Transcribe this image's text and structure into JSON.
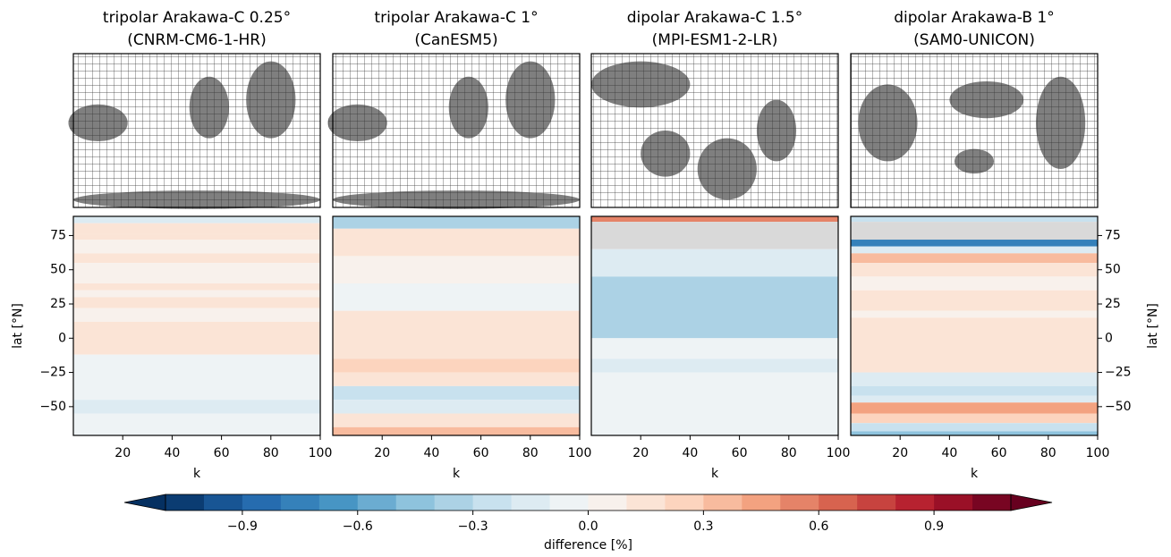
{
  "chart_data": [
    {
      "type": "contour",
      "title": "tripolar Arakawa-C 0.25°",
      "subtitle": "(CNRM-CM6-1-HR)",
      "xlabel": "k",
      "ylabel": "lat [°N]",
      "yaxis": "left",
      "xlim": [
        0,
        100
      ],
      "xticks": [
        20,
        40,
        60,
        80,
        100
      ],
      "ylim": [
        -71,
        89
      ],
      "yticks": [
        {
          "value": -50,
          "label": "−50"
        },
        {
          "value": -25,
          "label": "−25"
        },
        0,
        25,
        50,
        75
      ],
      "bands": [
        {
          "lat": [
            84,
            89
          ],
          "value": -0.2
        },
        {
          "lat": [
            76,
            84
          ],
          "value": 0.15
        },
        {
          "lat": [
            72,
            76
          ],
          "value": 0.1
        },
        {
          "lat": [
            62,
            72
          ],
          "value": 0.05
        },
        {
          "lat": [
            55,
            62
          ],
          "value": 0.15
        },
        {
          "lat": [
            40,
            55
          ],
          "value": 0.05
        },
        {
          "lat": [
            35,
            40
          ],
          "value": 0.15
        },
        {
          "lat": [
            30,
            35
          ],
          "value": 0.05
        },
        {
          "lat": [
            22,
            30
          ],
          "value": 0.15
        },
        {
          "lat": [
            12,
            22
          ],
          "value": 0.05
        },
        {
          "lat": [
            -12,
            12
          ],
          "value": 0.15
        },
        {
          "lat": [
            -45,
            -12
          ],
          "value": -0.05
        },
        {
          "lat": [
            -55,
            -45
          ],
          "value": -0.15
        },
        {
          "lat": [
            -71,
            -55
          ],
          "value": -0.05
        }
      ]
    },
    {
      "type": "contour",
      "title": "tripolar Arakawa-C 1°",
      "subtitle": "(CanESM5)",
      "xlabel": "k",
      "yaxis": "none",
      "xlim": [
        0,
        100
      ],
      "xticks": [
        20,
        40,
        60,
        80,
        100
      ],
      "ylim": [
        -71,
        89
      ],
      "bands": [
        {
          "lat": [
            80,
            89
          ],
          "value": -0.4
        },
        {
          "lat": [
            60,
            80
          ],
          "value": 0.15
        },
        {
          "lat": [
            40,
            60
          ],
          "value": 0.05
        },
        {
          "lat": [
            20,
            40
          ],
          "value": -0.05
        },
        {
          "lat": [
            -15,
            20
          ],
          "value": 0.15
        },
        {
          "lat": [
            -25,
            -15
          ],
          "value": 0.25
        },
        {
          "lat": [
            -35,
            -25
          ],
          "value": 0.15
        },
        {
          "lat": [
            -45,
            -35
          ],
          "value": -0.25
        },
        {
          "lat": [
            -55,
            -45
          ],
          "value": -0.15
        },
        {
          "lat": [
            -65,
            -55
          ],
          "value": 0.15
        },
        {
          "lat": [
            -71,
            -65
          ],
          "value": 0.3
        }
      ]
    },
    {
      "type": "contour",
      "title": "dipolar Arakawa-C 1.5°",
      "subtitle": "(MPI-ESM1-2-LR)",
      "xlabel": "k",
      "yaxis": "none",
      "xlim": [
        0,
        100
      ],
      "xticks": [
        20,
        40,
        60,
        80,
        100
      ],
      "ylim": [
        -71,
        89
      ],
      "bands": [
        {
          "lat": [
            85,
            89
          ],
          "value": 0.5
        },
        {
          "lat": [
            65,
            85
          ],
          "value": null
        },
        {
          "lat": [
            45,
            65
          ],
          "value": -0.15
        },
        {
          "lat": [
            0,
            45
          ],
          "value": -0.35
        },
        {
          "lat": [
            -15,
            0
          ],
          "value": -0.05
        },
        {
          "lat": [
            -25,
            -15
          ],
          "value": -0.15
        },
        {
          "lat": [
            -71,
            -25
          ],
          "value": -0.05
        }
      ]
    },
    {
      "type": "contour",
      "title": "dipolar Arakawa-B 1°",
      "subtitle": "(SAM0-UNICON)",
      "xlabel": "k",
      "ylabel": "lat [°N]",
      "yaxis": "right",
      "xlim": [
        0,
        100
      ],
      "xticks": [
        20,
        40,
        60,
        80,
        100
      ],
      "ylim": [
        -71,
        89
      ],
      "yticks": [
        {
          "value": -50,
          "label": "−50"
        },
        {
          "value": -25,
          "label": "−25"
        },
        0,
        25,
        50,
        75
      ],
      "bands": [
        {
          "lat": [
            85,
            89
          ],
          "value": -0.3
        },
        {
          "lat": [
            72,
            85
          ],
          "value": null
        },
        {
          "lat": [
            67,
            72
          ],
          "value": -0.8
        },
        {
          "lat": [
            62,
            67
          ],
          "value": -0.15
        },
        {
          "lat": [
            55,
            62
          ],
          "value": 0.3
        },
        {
          "lat": [
            45,
            55
          ],
          "value": 0.1
        },
        {
          "lat": [
            35,
            45
          ],
          "value": 0.05
        },
        {
          "lat": [
            20,
            35
          ],
          "value": 0.15
        },
        {
          "lat": [
            15,
            20
          ],
          "value": 0.05
        },
        {
          "lat": [
            -25,
            15
          ],
          "value": 0.15
        },
        {
          "lat": [
            -35,
            -25
          ],
          "value": -0.15
        },
        {
          "lat": [
            -42,
            -35
          ],
          "value": -0.3
        },
        {
          "lat": [
            -47,
            -42
          ],
          "value": -0.15
        },
        {
          "lat": [
            -55,
            -47
          ],
          "value": 0.45
        },
        {
          "lat": [
            -62,
            -55
          ],
          "value": 0.2
        },
        {
          "lat": [
            -68,
            -62
          ],
          "value": -0.3
        },
        {
          "lat": [
            -71,
            -68
          ],
          "value": -0.5
        }
      ]
    }
  ],
  "colorbar": {
    "label": "difference [%]",
    "cmap": "RdBu_r",
    "extend": "both",
    "levels": [
      -1.1,
      -1.0,
      -0.9,
      -0.8,
      -0.7,
      -0.6,
      -0.5,
      -0.4,
      -0.3,
      -0.2,
      -0.1,
      0.0,
      0.1,
      0.2,
      0.3,
      0.4,
      0.5,
      0.6,
      0.7,
      0.8,
      0.9,
      1.0,
      1.1
    ],
    "ticks": [
      {
        "value": -0.9,
        "label": "−0.9"
      },
      {
        "value": -0.6,
        "label": "−0.6"
      },
      {
        "value": -0.3,
        "label": "−0.3"
      },
      {
        "value": 0.0,
        "label": "0.0"
      },
      0.3,
      0.6,
      0.9
    ]
  }
}
